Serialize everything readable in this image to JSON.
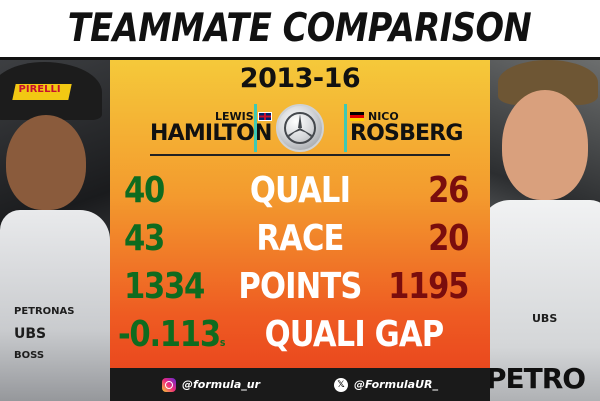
{
  "title": "TEAMMATE COMPARISON",
  "season": "2013-16",
  "drivers": {
    "left": {
      "first": "LEWIS",
      "last": "HAMILTON",
      "flag": "uk-flag"
    },
    "right": {
      "first": "NICO",
      "last": "ROSBERG",
      "flag": "germany-flag"
    }
  },
  "team_emblem": "mercedes-star-icon",
  "stats": [
    {
      "label": "QUALI",
      "left": "40",
      "right": "26"
    },
    {
      "label": "RACE",
      "left": "43",
      "right": "20"
    },
    {
      "label": "POINTS",
      "left": "1334",
      "right": "1195"
    },
    {
      "label": "QUALI GAP",
      "left": "-0.113",
      "left_unit": "s",
      "right": ""
    }
  ],
  "footer": {
    "instagram": "@formula_ur",
    "x": "@FormulaUR_"
  },
  "photo_text": {
    "left_cap": "PIRELLI",
    "left_sponsors": [
      "PETRONAS",
      "UBS",
      "BOSS"
    ],
    "right_sponsors": [
      "UBS"
    ],
    "right_bottom": "PETRO"
  },
  "colors": {
    "left_value": "#0f6b1f",
    "right_value": "#7a0d0d",
    "accent": "#3ec9b4"
  }
}
